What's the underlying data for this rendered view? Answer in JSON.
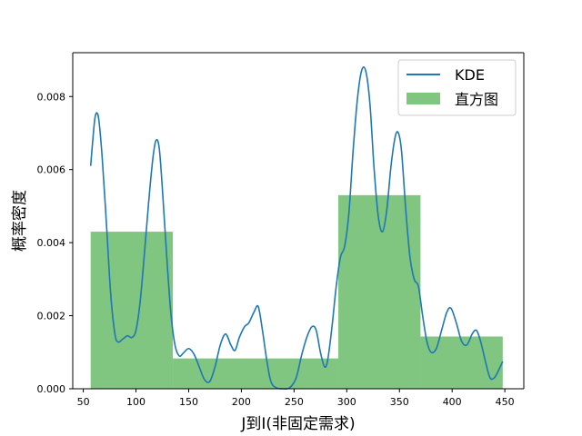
{
  "chart_data": {
    "type": "bar",
    "xlabel": "J到I(非固定需求)",
    "ylabel": "概率密度",
    "xlim": [
      40,
      468
    ],
    "ylim": [
      0,
      0.0092
    ],
    "x_ticks": [
      50,
      100,
      150,
      200,
      250,
      300,
      350,
      400,
      450
    ],
    "y_ticks": [
      0.0,
      0.002,
      0.004,
      0.006,
      0.008
    ],
    "y_tick_labels": [
      "0.000",
      "0.002",
      "0.004",
      "0.006",
      "0.008"
    ],
    "grid": false,
    "legend_position": "top-right",
    "colors": {
      "kde": "#1f77b4",
      "histogram": "#2ca02c"
    },
    "histogram": {
      "name": "直方图",
      "bins": [
        {
          "x0": 57,
          "x1": 135,
          "density": 0.0043
        },
        {
          "x0": 135,
          "x1": 213,
          "density": 0.00083
        },
        {
          "x0": 213,
          "x1": 292,
          "density": 0.00083
        },
        {
          "x0": 292,
          "x1": 370,
          "density": 0.0053
        },
        {
          "x0": 370,
          "x1": 448,
          "density": 0.00143
        }
      ]
    },
    "kde": {
      "name": "KDE",
      "points": [
        [
          57,
          0.0061
        ],
        [
          59,
          0.0068
        ],
        [
          61,
          0.0074
        ],
        [
          63,
          0.00755
        ],
        [
          65,
          0.0073
        ],
        [
          68,
          0.0063
        ],
        [
          72,
          0.0045
        ],
        [
          76,
          0.0026
        ],
        [
          80,
          0.0015
        ],
        [
          83,
          0.00128
        ],
        [
          87,
          0.00135
        ],
        [
          92,
          0.00145
        ],
        [
          96,
          0.0014
        ],
        [
          100,
          0.0016
        ],
        [
          104,
          0.0024
        ],
        [
          108,
          0.0037
        ],
        [
          112,
          0.0051
        ],
        [
          116,
          0.0063
        ],
        [
          119,
          0.0068
        ],
        [
          122,
          0.0066
        ],
        [
          125,
          0.0055
        ],
        [
          129,
          0.0037
        ],
        [
          133,
          0.0021
        ],
        [
          137,
          0.0012
        ],
        [
          141,
          0.0009
        ],
        [
          145,
          0.00098
        ],
        [
          150,
          0.0011
        ],
        [
          155,
          0.00095
        ],
        [
          160,
          0.0006
        ],
        [
          165,
          0.00025
        ],
        [
          170,
          0.0002
        ],
        [
          175,
          0.0006
        ],
        [
          180,
          0.0012
        ],
        [
          185,
          0.0015
        ],
        [
          190,
          0.0012
        ],
        [
          194,
          0.00105
        ],
        [
          198,
          0.0014
        ],
        [
          203,
          0.0017
        ],
        [
          207,
          0.0018
        ],
        [
          212,
          0.0021
        ],
        [
          216,
          0.00225
        ],
        [
          220,
          0.0016
        ],
        [
          224,
          0.0008
        ],
        [
          228,
          0.0002
        ],
        [
          233,
          3e-05
        ],
        [
          240,
          0.0
        ],
        [
          246,
          3e-05
        ],
        [
          252,
          0.0003
        ],
        [
          257,
          0.0009
        ],
        [
          262,
          0.0014
        ],
        [
          267,
          0.0017
        ],
        [
          271,
          0.0016
        ],
        [
          275,
          0.001
        ],
        [
          279,
          0.0006
        ],
        [
          282,
          0.0008
        ],
        [
          286,
          0.0017
        ],
        [
          290,
          0.0028
        ],
        [
          294,
          0.0036
        ],
        [
          298,
          0.0039
        ],
        [
          302,
          0.0048
        ],
        [
          306,
          0.0065
        ],
        [
          310,
          0.0079
        ],
        [
          314,
          0.0087
        ],
        [
          318,
          0.0087
        ],
        [
          322,
          0.0078
        ],
        [
          326,
          0.006
        ],
        [
          330,
          0.0047
        ],
        [
          334,
          0.0043
        ],
        [
          338,
          0.0049
        ],
        [
          342,
          0.0061
        ],
        [
          346,
          0.0069
        ],
        [
          349,
          0.007
        ],
        [
          352,
          0.0065
        ],
        [
          356,
          0.0049
        ],
        [
          360,
          0.0036
        ],
        [
          364,
          0.003
        ],
        [
          368,
          0.0028
        ],
        [
          372,
          0.002
        ],
        [
          376,
          0.0013
        ],
        [
          380,
          0.001
        ],
        [
          385,
          0.0011
        ],
        [
          390,
          0.0016
        ],
        [
          395,
          0.0021
        ],
        [
          399,
          0.0022
        ],
        [
          404,
          0.0018
        ],
        [
          409,
          0.0013
        ],
        [
          414,
          0.0012
        ],
        [
          419,
          0.0015
        ],
        [
          423,
          0.0016
        ],
        [
          427,
          0.0013
        ],
        [
          432,
          0.0007
        ],
        [
          436,
          0.0003
        ],
        [
          440,
          0.0003
        ],
        [
          444,
          0.0005
        ],
        [
          448,
          0.00075
        ]
      ]
    }
  }
}
